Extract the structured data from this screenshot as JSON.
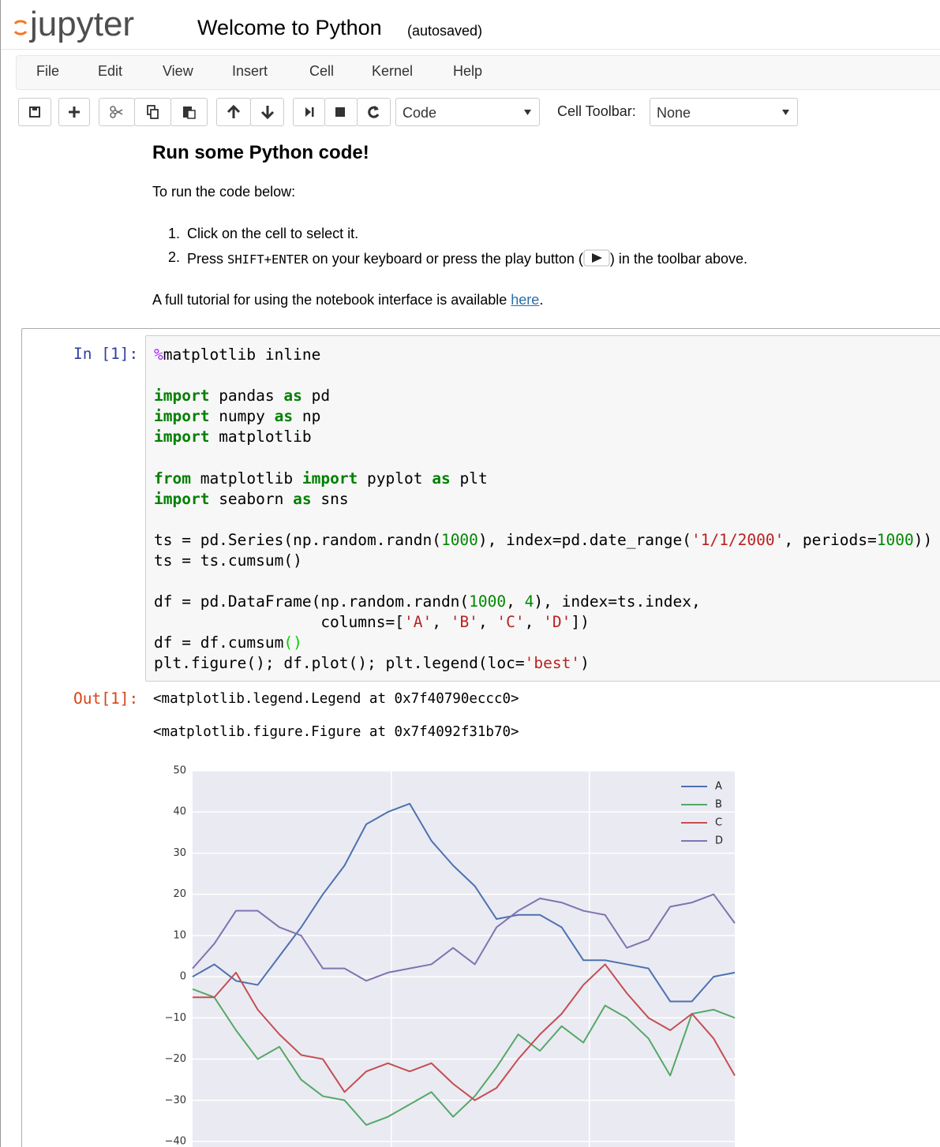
{
  "header": {
    "logo": "jupyter",
    "title": "Welcome to Python",
    "status": "(autosaved)"
  },
  "menu": [
    "File",
    "Edit",
    "View",
    "Insert",
    "Cell",
    "Kernel",
    "Help"
  ],
  "toolbar": {
    "cell_type": "Code",
    "cell_toolbar_label": "Cell Toolbar:",
    "cell_toolbar_value": "None"
  },
  "markdown": {
    "heading": "Run some Python code!",
    "intro": "To run the code below:",
    "steps": [
      {
        "number": "1.",
        "text": "Click on the cell to select it."
      },
      {
        "number": "2.",
        "text_before": "Press ",
        "key": "SHIFT+ENTER",
        "text_after": " on your keyboard or press the play button (",
        "text_end": ") in the toolbar above."
      }
    ],
    "footer_text": "A full tutorial for using the notebook interface is available ",
    "link": "here",
    "footer_end": "."
  },
  "code_cell": {
    "prompt": "In [1]:",
    "lines": [
      [
        {
          "text": "%",
          "color": "#AA22FF"
        },
        {
          "text": "matplotlib inline"
        }
      ],
      [],
      [
        {
          "text": "import",
          "color": "#008000",
          "bold": true
        },
        {
          "text": " pandas "
        },
        {
          "text": "as",
          "color": "#008000",
          "bold": true
        },
        {
          "text": " pd"
        }
      ],
      [
        {
          "text": "import",
          "color": "#008000",
          "bold": true
        },
        {
          "text": " numpy "
        },
        {
          "text": "as",
          "color": "#008000",
          "bold": true
        },
        {
          "text": " np"
        }
      ],
      [
        {
          "text": "import",
          "color": "#008000",
          "bold": true
        },
        {
          "text": " matplotlib"
        }
      ],
      [],
      [
        {
          "text": "from",
          "color": "#008000",
          "bold": true
        },
        {
          "text": " matplotlib "
        },
        {
          "text": "import",
          "color": "#008000",
          "bold": true
        },
        {
          "text": " pyplot "
        },
        {
          "text": "as",
          "color": "#008000",
          "bold": true
        },
        {
          "text": " plt"
        }
      ],
      [
        {
          "text": "import",
          "color": "#008000",
          "bold": true
        },
        {
          "text": " seaborn "
        },
        {
          "text": "as",
          "color": "#008000",
          "bold": true
        },
        {
          "text": " sns"
        }
      ],
      [],
      [
        {
          "text": "ts = pd.Series(np.random.randn("
        },
        {
          "text": "1000",
          "color": "#008800"
        },
        {
          "text": "), index=pd.date_range("
        },
        {
          "text": "'1/1/2000'",
          "color": "#BA2121"
        },
        {
          "text": ", periods="
        },
        {
          "text": "1000",
          "color": "#008800"
        },
        {
          "text": "))"
        }
      ],
      [
        {
          "text": "ts = ts.cumsum()"
        }
      ],
      [],
      [
        {
          "text": "df = pd.DataFrame(np.random.randn("
        },
        {
          "text": "1000",
          "color": "#008800"
        },
        {
          "text": ", "
        },
        {
          "text": "4",
          "color": "#008800"
        },
        {
          "text": "), index=ts.index,"
        }
      ],
      [
        {
          "text": "                  columns=["
        },
        {
          "text": "'A'",
          "color": "#BA2121"
        },
        {
          "text": ", "
        },
        {
          "text": "'B'",
          "color": "#BA2121"
        },
        {
          "text": ", "
        },
        {
          "text": "'C'",
          "color": "#BA2121"
        },
        {
          "text": ", "
        },
        {
          "text": "'D'",
          "color": "#BA2121"
        },
        {
          "text": "])"
        }
      ],
      [
        {
          "text": "df = df.cumsum"
        },
        {
          "text": "()",
          "color": "#00d000"
        }
      ],
      [
        {
          "text": "plt.figure(); df.plot(); plt.legend(loc="
        },
        {
          "text": "'best'",
          "color": "#BA2121"
        },
        {
          "text": ")"
        }
      ]
    ]
  },
  "output": {
    "prompt": "Out[1]:",
    "lines": [
      "<matplotlib.legend.Legend at 0x7f40790eccc0>",
      "<matplotlib.figure.Figure at 0x7f4092f31b70>"
    ]
  },
  "chart_data": {
    "type": "line",
    "x": [
      0,
      40,
      80,
      120,
      160,
      200,
      240,
      280,
      320,
      360,
      400,
      440,
      480,
      520,
      560,
      600,
      640,
      680,
      720,
      760,
      800,
      840,
      880,
      920,
      960,
      999
    ],
    "series": [
      {
        "name": "A",
        "color": "#4C72B0",
        "values": [
          0,
          3,
          -1,
          -2,
          5,
          12,
          20,
          27,
          37,
          40,
          42,
          33,
          27,
          22,
          14,
          15,
          15,
          12,
          4,
          4,
          3,
          2,
          -6,
          -6,
          0,
          1
        ]
      },
      {
        "name": "B",
        "color": "#55A868",
        "values": [
          -3,
          -5,
          -13,
          -20,
          -17,
          -25,
          -29,
          -30,
          -36,
          -34,
          -31,
          -28,
          -34,
          -29,
          -22,
          -14,
          -18,
          -12,
          -16,
          -7,
          -10,
          -15,
          -24,
          -9,
          -8,
          -10
        ]
      },
      {
        "name": "C",
        "color": "#C44E52",
        "values": [
          -5,
          -5,
          1,
          -8,
          -14,
          -19,
          -20,
          -28,
          -23,
          -21,
          -23,
          -21,
          -26,
          -30,
          -27,
          -20,
          -14,
          -9,
          -2,
          3,
          -4,
          -10,
          -13,
          -9,
          -15,
          -24
        ]
      },
      {
        "name": "D",
        "color": "#8172B2",
        "values": [
          2,
          8,
          16,
          16,
          12,
          10,
          2,
          2,
          -1,
          1,
          2,
          3,
          7,
          3,
          12,
          16,
          19,
          18,
          16,
          15,
          7,
          9,
          17,
          18,
          20,
          13
        ]
      }
    ],
    "xlim": [
      0,
      999
    ],
    "xticks": [
      366,
      731
    ],
    "ylim": [
      -40,
      50
    ],
    "yticks": [
      50,
      40,
      30,
      20,
      10,
      0,
      {
        "value": -10,
        "label": "−10"
      },
      {
        "value": -20,
        "label": "−20"
      },
      {
        "value": -30,
        "label": "−30"
      },
      {
        "value": -40,
        "label": "−40"
      }
    ],
    "grid": true,
    "legend": "upper right"
  }
}
